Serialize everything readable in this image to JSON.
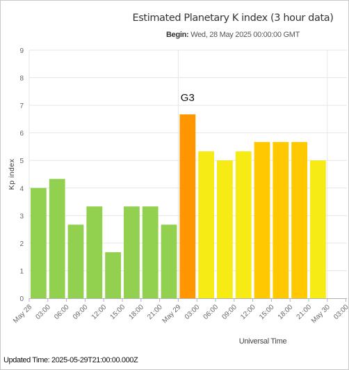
{
  "title": "Estimated Planetary K index (3 hour data)",
  "subtitle": {
    "label": "Begin:",
    "value": "Wed, 28 May 2025 00:00:00 GMT"
  },
  "footer": {
    "updated_text": "Updated Time: 2025-05-29T21:00:00.000Z"
  },
  "colors": {
    "quiet": "#92d050",
    "active": "#f6eb14",
    "g1": "#ffc800",
    "g3": "#ff9600",
    "grid": "#e6e6e6",
    "axis_text": "#666666"
  },
  "chart_data": {
    "type": "bar",
    "title": "Estimated Planetary K index (3 hour data)",
    "xlabel": "Universal Time",
    "ylabel": "Kp index",
    "ylim": [
      0,
      9
    ],
    "yticks": [
      "0",
      "1",
      "2",
      "3",
      "4",
      "5",
      "6",
      "7",
      "8",
      "9"
    ],
    "xticks": [
      "May 28",
      "03:00",
      "06:00",
      "09:00",
      "12:00",
      "15:00",
      "18:00",
      "21:00",
      "May 29",
      "03:00",
      "06:00",
      "09:00",
      "12:00",
      "15:00",
      "18:00",
      "21:00",
      "May 30",
      "03:00"
    ],
    "grid": true,
    "legend": "none",
    "bars": [
      {
        "start": "2025-05-28T00:00Z",
        "value": 4.0,
        "color": "#92d050"
      },
      {
        "start": "2025-05-28T03:00Z",
        "value": 4.33,
        "color": "#92d050"
      },
      {
        "start": "2025-05-28T06:00Z",
        "value": 2.67,
        "color": "#92d050"
      },
      {
        "start": "2025-05-28T09:00Z",
        "value": 3.33,
        "color": "#92d050"
      },
      {
        "start": "2025-05-28T12:00Z",
        "value": 1.67,
        "color": "#92d050"
      },
      {
        "start": "2025-05-28T15:00Z",
        "value": 3.33,
        "color": "#92d050"
      },
      {
        "start": "2025-05-28T18:00Z",
        "value": 3.33,
        "color": "#92d050"
      },
      {
        "start": "2025-05-28T21:00Z",
        "value": 2.67,
        "color": "#92d050"
      },
      {
        "start": "2025-05-29T00:00Z",
        "value": 6.67,
        "color": "#ff9600"
      },
      {
        "start": "2025-05-29T03:00Z",
        "value": 5.33,
        "color": "#f6eb14"
      },
      {
        "start": "2025-05-29T06:00Z",
        "value": 5.0,
        "color": "#f6eb14"
      },
      {
        "start": "2025-05-29T09:00Z",
        "value": 5.33,
        "color": "#f6eb14"
      },
      {
        "start": "2025-05-29T12:00Z",
        "value": 5.67,
        "color": "#ffc800"
      },
      {
        "start": "2025-05-29T15:00Z",
        "value": 5.67,
        "color": "#ffc800"
      },
      {
        "start": "2025-05-29T18:00Z",
        "value": 5.67,
        "color": "#ffc800"
      },
      {
        "start": "2025-05-29T21:00Z",
        "value": 5.0,
        "color": "#f6eb14"
      }
    ],
    "annotations": [
      {
        "text": "G3",
        "bar_index": 8
      }
    ]
  }
}
